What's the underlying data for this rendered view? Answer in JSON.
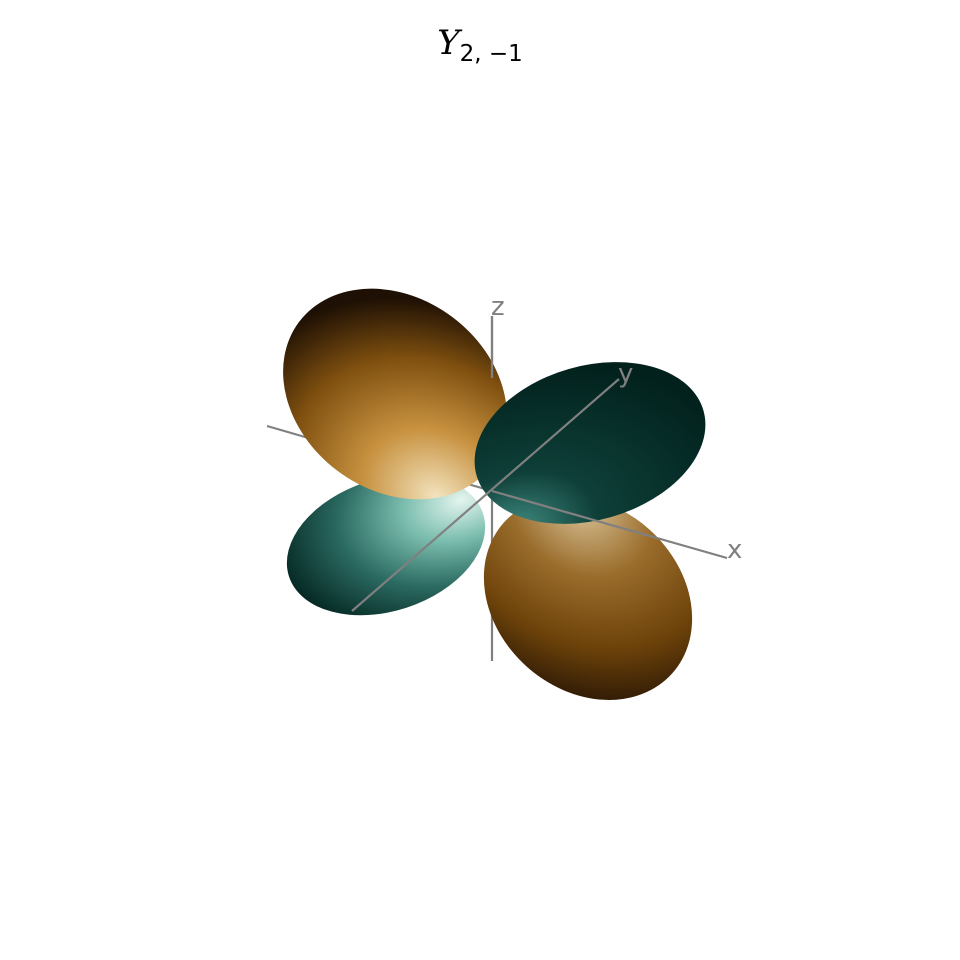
{
  "title": {
    "symbol": "Y",
    "subscript": "2, −1"
  },
  "axes": {
    "x_label": "x",
    "y_label": "y",
    "z_label": "z",
    "color": "#808080"
  },
  "lobes": {
    "positive_color": "#8a5a12",
    "negative_color": "#0f4a42",
    "positive_highlight": "#f0e0b8",
    "negative_highlight": "#cfeee6"
  }
}
